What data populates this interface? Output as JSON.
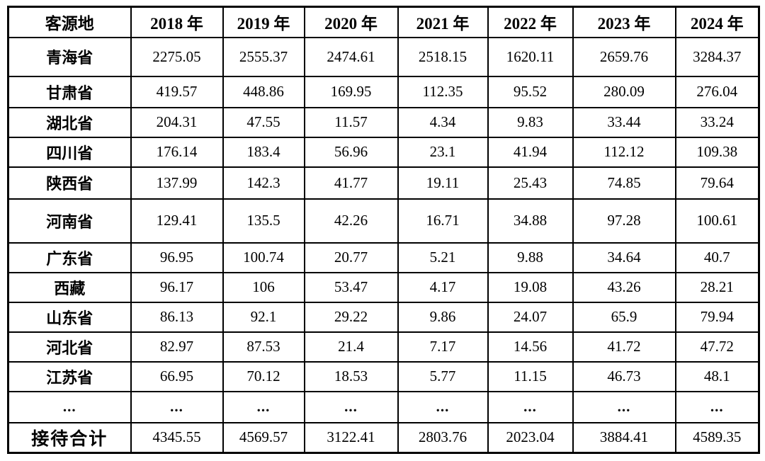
{
  "table": {
    "header": [
      "客源地",
      "2018 年",
      "2019 年",
      "2020 年",
      "2021 年",
      "2022 年",
      "2023 年",
      "2024 年"
    ],
    "rows": [
      {
        "label": "青海省",
        "values": [
          "2275.05",
          "2555.37",
          "2474.61",
          "2518.15",
          "1620.11",
          "2659.76",
          "3284.37"
        ]
      },
      {
        "label": "甘肃省",
        "values": [
          "419.57",
          "448.86",
          "169.95",
          "112.35",
          "95.52",
          "280.09",
          "276.04"
        ]
      },
      {
        "label": "湖北省",
        "values": [
          "204.31",
          "47.55",
          "11.57",
          "4.34",
          "9.83",
          "33.44",
          "33.24"
        ]
      },
      {
        "label": "四川省",
        "values": [
          "176.14",
          "183.4",
          "56.96",
          "23.1",
          "41.94",
          "112.12",
          "109.38"
        ]
      },
      {
        "label": "陕西省",
        "values": [
          "137.99",
          "142.3",
          "41.77",
          "19.11",
          "25.43",
          "74.85",
          "79.64"
        ]
      },
      {
        "label": "河南省",
        "values": [
          "129.41",
          "135.5",
          "42.26",
          "16.71",
          "34.88",
          "97.28",
          "100.61"
        ]
      },
      {
        "label": "广东省",
        "values": [
          "96.95",
          "100.74",
          "20.77",
          "5.21",
          "9.88",
          "34.64",
          "40.7"
        ]
      },
      {
        "label": "西藏",
        "values": [
          "96.17",
          "106",
          "53.47",
          "4.17",
          "19.08",
          "43.26",
          "28.21"
        ]
      },
      {
        "label": "山东省",
        "values": [
          "86.13",
          "92.1",
          "29.22",
          "9.86",
          "24.07",
          "65.9",
          "79.94"
        ]
      },
      {
        "label": "河北省",
        "values": [
          "82.97",
          "87.53",
          "21.4",
          "7.17",
          "14.56",
          "41.72",
          "47.72"
        ]
      },
      {
        "label": "江苏省",
        "values": [
          "66.95",
          "70.12",
          "18.53",
          "5.77",
          "11.15",
          "46.73",
          "48.1"
        ]
      },
      {
        "label": "...",
        "values": [
          "...",
          "...",
          "...",
          "...",
          "...",
          "...",
          "..."
        ]
      },
      {
        "label": "接待合计",
        "values": [
          "4345.55",
          "4569.57",
          "3122.41",
          "2803.76",
          "2023.04",
          "3884.41",
          "4589.35"
        ]
      }
    ]
  },
  "chart_data": {
    "type": "table",
    "title": "客源地历年接待数据表",
    "categories": [
      "2018 年",
      "2019 年",
      "2020 年",
      "2021 年",
      "2022 年",
      "2023 年",
      "2024 年"
    ],
    "series": [
      {
        "name": "青海省",
        "values": [
          2275.05,
          2555.37,
          2474.61,
          2518.15,
          1620.11,
          2659.76,
          3284.37
        ]
      },
      {
        "name": "甘肃省",
        "values": [
          419.57,
          448.86,
          169.95,
          112.35,
          95.52,
          280.09,
          276.04
        ]
      },
      {
        "name": "湖北省",
        "values": [
          204.31,
          47.55,
          11.57,
          4.34,
          9.83,
          33.44,
          33.24
        ]
      },
      {
        "name": "四川省",
        "values": [
          176.14,
          183.4,
          56.96,
          23.1,
          41.94,
          112.12,
          109.38
        ]
      },
      {
        "name": "陕西省",
        "values": [
          137.99,
          142.3,
          41.77,
          19.11,
          25.43,
          74.85,
          79.64
        ]
      },
      {
        "name": "河南省",
        "values": [
          129.41,
          135.5,
          42.26,
          16.71,
          34.88,
          97.28,
          100.61
        ]
      },
      {
        "name": "广东省",
        "values": [
          96.95,
          100.74,
          20.77,
          5.21,
          9.88,
          34.64,
          40.7
        ]
      },
      {
        "name": "西藏",
        "values": [
          96.17,
          106,
          53.47,
          4.17,
          19.08,
          43.26,
          28.21
        ]
      },
      {
        "name": "山东省",
        "values": [
          86.13,
          92.1,
          29.22,
          9.86,
          24.07,
          65.9,
          79.94
        ]
      },
      {
        "name": "河北省",
        "values": [
          82.97,
          87.53,
          21.4,
          7.17,
          14.56,
          41.72,
          47.72
        ]
      },
      {
        "name": "江苏省",
        "values": [
          66.95,
          70.12,
          18.53,
          5.77,
          11.15,
          46.73,
          48.1
        ]
      },
      {
        "name": "接待合计",
        "values": [
          4345.55,
          4569.57,
          3122.41,
          2803.76,
          2023.04,
          3884.41,
          4589.35
        ]
      }
    ]
  }
}
